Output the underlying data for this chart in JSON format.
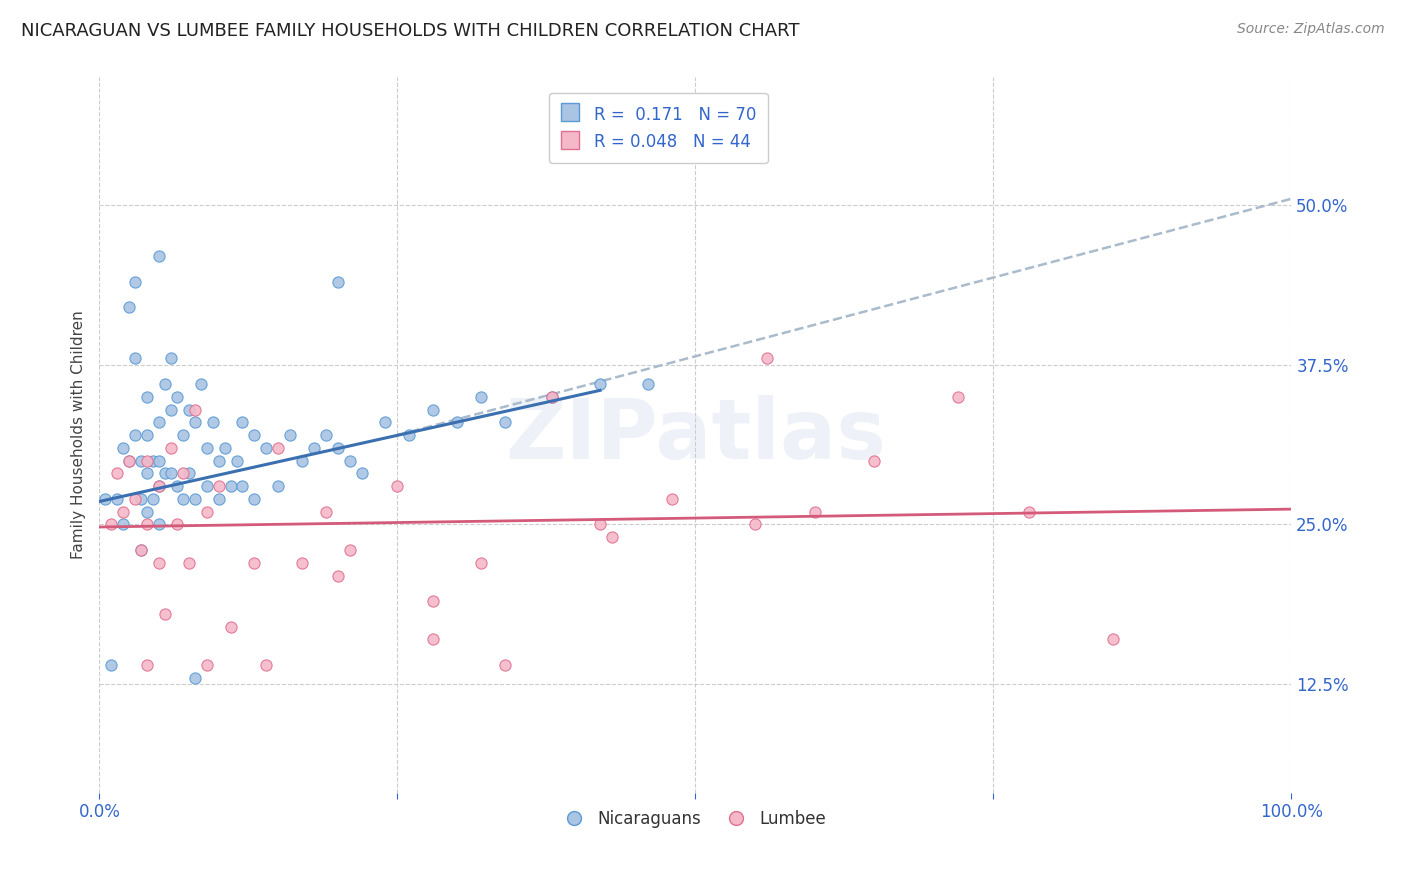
{
  "title": "NICARAGUAN VS LUMBEE FAMILY HOUSEHOLDS WITH CHILDREN CORRELATION CHART",
  "source": "Source: ZipAtlas.com",
  "ylabel": "Family Households with Children",
  "xlim": [
    0.0,
    1.0
  ],
  "ylim": [
    0.04,
    0.6
  ],
  "xticks": [
    0.0,
    0.25,
    0.5,
    0.75,
    1.0
  ],
  "xtick_labels": [
    "0.0%",
    "",
    "",
    "",
    "100.0%"
  ],
  "ytick_values": [
    0.125,
    0.25,
    0.375,
    0.5
  ],
  "ytick_labels": [
    "12.5%",
    "25.0%",
    "37.5%",
    "50.0%"
  ],
  "nicaraguan_fill": "#aac4e4",
  "nicaraguan_edge": "#5b9bd5",
  "lumbee_fill": "#f4b8c8",
  "lumbee_edge": "#e07090",
  "nic_line_color": "#3a6fb0",
  "lum_line_color": "#d45a7a",
  "gray_dash_color": "#aabbcc",
  "R_nicaraguan": 0.171,
  "N_nicaraguan": 70,
  "R_lumbee": 0.048,
  "N_lumbee": 44,
  "watermark": "ZIPatlas",
  "background_color": "#ffffff",
  "grid_color": "#cccccc",
  "tick_color": "#3366cc",
  "title_fontsize": 13,
  "ylabel_fontsize": 11,
  "tick_fontsize": 12,
  "legend_fontsize": 12,
  "nicaraguan_x": [
    0.005,
    0.01,
    0.015,
    0.02,
    0.02,
    0.025,
    0.025,
    0.03,
    0.03,
    0.03,
    0.035,
    0.035,
    0.035,
    0.04,
    0.04,
    0.04,
    0.04,
    0.045,
    0.045,
    0.05,
    0.05,
    0.05,
    0.05,
    0.055,
    0.055,
    0.06,
    0.06,
    0.06,
    0.065,
    0.065,
    0.07,
    0.07,
    0.075,
    0.075,
    0.08,
    0.08,
    0.085,
    0.09,
    0.09,
    0.095,
    0.1,
    0.1,
    0.105,
    0.11,
    0.115,
    0.12,
    0.12,
    0.13,
    0.13,
    0.14,
    0.15,
    0.16,
    0.17,
    0.18,
    0.19,
    0.2,
    0.21,
    0.22,
    0.24,
    0.26,
    0.28,
    0.3,
    0.32,
    0.34,
    0.38,
    0.42,
    0.46,
    0.2,
    0.08,
    0.05
  ],
  "nicaraguan_y": [
    0.27,
    0.14,
    0.27,
    0.31,
    0.25,
    0.42,
    0.3,
    0.44,
    0.38,
    0.32,
    0.3,
    0.27,
    0.23,
    0.35,
    0.32,
    0.29,
    0.26,
    0.3,
    0.27,
    0.33,
    0.3,
    0.28,
    0.25,
    0.36,
    0.29,
    0.38,
    0.34,
    0.29,
    0.35,
    0.28,
    0.32,
    0.27,
    0.34,
    0.29,
    0.33,
    0.27,
    0.36,
    0.31,
    0.28,
    0.33,
    0.3,
    0.27,
    0.31,
    0.28,
    0.3,
    0.33,
    0.28,
    0.32,
    0.27,
    0.31,
    0.28,
    0.32,
    0.3,
    0.31,
    0.32,
    0.31,
    0.3,
    0.29,
    0.33,
    0.32,
    0.34,
    0.33,
    0.35,
    0.33,
    0.35,
    0.36,
    0.36,
    0.44,
    0.13,
    0.46
  ],
  "lumbee_x": [
    0.01,
    0.015,
    0.02,
    0.025,
    0.03,
    0.035,
    0.04,
    0.04,
    0.05,
    0.05,
    0.055,
    0.06,
    0.065,
    0.07,
    0.075,
    0.08,
    0.09,
    0.1,
    0.11,
    0.13,
    0.15,
    0.17,
    0.19,
    0.21,
    0.25,
    0.28,
    0.32,
    0.38,
    0.43,
    0.48,
    0.55,
    0.6,
    0.65,
    0.72,
    0.78,
    0.85,
    0.56,
    0.42,
    0.34,
    0.28,
    0.2,
    0.14,
    0.09,
    0.04
  ],
  "lumbee_y": [
    0.25,
    0.29,
    0.26,
    0.3,
    0.27,
    0.23,
    0.3,
    0.25,
    0.28,
    0.22,
    0.18,
    0.31,
    0.25,
    0.29,
    0.22,
    0.34,
    0.26,
    0.28,
    0.17,
    0.22,
    0.31,
    0.22,
    0.26,
    0.23,
    0.28,
    0.16,
    0.22,
    0.35,
    0.24,
    0.27,
    0.25,
    0.26,
    0.3,
    0.35,
    0.26,
    0.16,
    0.38,
    0.25,
    0.14,
    0.19,
    0.21,
    0.14,
    0.14,
    0.14
  ],
  "nic_line_x": [
    0.0,
    0.42
  ],
  "nic_line_y_start": 0.268,
  "nic_line_y_end": 0.355,
  "gray_line_x": [
    0.25,
    1.0
  ],
  "gray_line_y": [
    0.32,
    0.505
  ],
  "lum_line_x": [
    0.0,
    1.0
  ],
  "lum_line_y_start": 0.248,
  "lum_line_y_end": 0.262
}
